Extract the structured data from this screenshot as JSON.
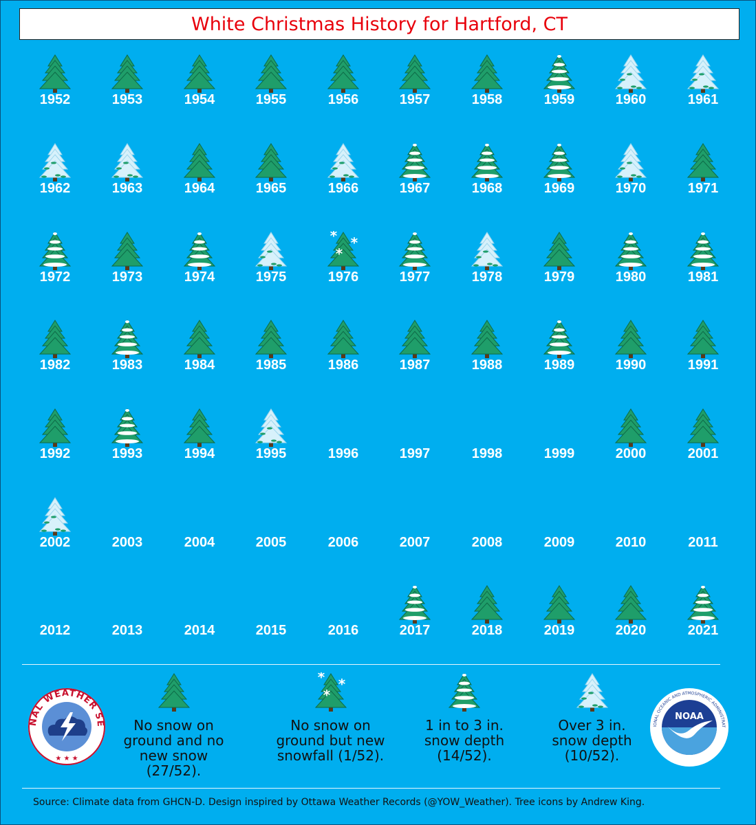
{
  "title": "White Christmas History for Hartford, CT",
  "colors": {
    "background": "#00aeef",
    "title": "#e8000b",
    "tree_green": "#1f9e6a",
    "tree_dark": "#0e6b47",
    "snow": "#ffffff"
  },
  "chart_data": {
    "type": "table",
    "categories_legend": {
      "none": "No snow on ground and no new snow (27/52).",
      "new": "No snow on ground but new snowfall (1/52).",
      "light": "1 in to 3 in. snow depth (14/52).",
      "heavy": "Over 3 in. snow depth (10/52)."
    },
    "years": [
      {
        "year": "1952",
        "cat": "none"
      },
      {
        "year": "1953",
        "cat": "none"
      },
      {
        "year": "1954",
        "cat": "none"
      },
      {
        "year": "1955",
        "cat": "none"
      },
      {
        "year": "1956",
        "cat": "none"
      },
      {
        "year": "1957",
        "cat": "none"
      },
      {
        "year": "1958",
        "cat": "none"
      },
      {
        "year": "1959",
        "cat": "light"
      },
      {
        "year": "1960",
        "cat": "heavy"
      },
      {
        "year": "1961",
        "cat": "heavy"
      },
      {
        "year": "1962",
        "cat": "heavy"
      },
      {
        "year": "1963",
        "cat": "heavy"
      },
      {
        "year": "1964",
        "cat": "none"
      },
      {
        "year": "1965",
        "cat": "none"
      },
      {
        "year": "1966",
        "cat": "heavy"
      },
      {
        "year": "1967",
        "cat": "light"
      },
      {
        "year": "1968",
        "cat": "light"
      },
      {
        "year": "1969",
        "cat": "light"
      },
      {
        "year": "1970",
        "cat": "heavy"
      },
      {
        "year": "1971",
        "cat": "none"
      },
      {
        "year": "1972",
        "cat": "light"
      },
      {
        "year": "1973",
        "cat": "none"
      },
      {
        "year": "1974",
        "cat": "light"
      },
      {
        "year": "1975",
        "cat": "heavy"
      },
      {
        "year": "1976",
        "cat": "new"
      },
      {
        "year": "1977",
        "cat": "light"
      },
      {
        "year": "1978",
        "cat": "heavy"
      },
      {
        "year": "1979",
        "cat": "none"
      },
      {
        "year": "1980",
        "cat": "light"
      },
      {
        "year": "1981",
        "cat": "light"
      },
      {
        "year": "1982",
        "cat": "none"
      },
      {
        "year": "1983",
        "cat": "light"
      },
      {
        "year": "1984",
        "cat": "none"
      },
      {
        "year": "1985",
        "cat": "none"
      },
      {
        "year": "1986",
        "cat": "none"
      },
      {
        "year": "1987",
        "cat": "none"
      },
      {
        "year": "1988",
        "cat": "none"
      },
      {
        "year": "1989",
        "cat": "light"
      },
      {
        "year": "1990",
        "cat": "none"
      },
      {
        "year": "1991",
        "cat": "none"
      },
      {
        "year": "1992",
        "cat": "none"
      },
      {
        "year": "1993",
        "cat": "light"
      },
      {
        "year": "1994",
        "cat": "none"
      },
      {
        "year": "1995",
        "cat": "heavy"
      },
      {
        "year": "1996",
        "cat": ""
      },
      {
        "year": "1997",
        "cat": ""
      },
      {
        "year": "1998",
        "cat": ""
      },
      {
        "year": "1999",
        "cat": ""
      },
      {
        "year": "2000",
        "cat": "none"
      },
      {
        "year": "2001",
        "cat": "none"
      },
      {
        "year": "2002",
        "cat": "heavy"
      },
      {
        "year": "2003",
        "cat": ""
      },
      {
        "year": "2004",
        "cat": ""
      },
      {
        "year": "2005",
        "cat": ""
      },
      {
        "year": "2006",
        "cat": ""
      },
      {
        "year": "2007",
        "cat": ""
      },
      {
        "year": "2008",
        "cat": ""
      },
      {
        "year": "2009",
        "cat": ""
      },
      {
        "year": "2010",
        "cat": ""
      },
      {
        "year": "2011",
        "cat": ""
      },
      {
        "year": "2012",
        "cat": ""
      },
      {
        "year": "2013",
        "cat": ""
      },
      {
        "year": "2014",
        "cat": ""
      },
      {
        "year": "2015",
        "cat": ""
      },
      {
        "year": "2016",
        "cat": ""
      },
      {
        "year": "2017",
        "cat": "light"
      },
      {
        "year": "2018",
        "cat": "none"
      },
      {
        "year": "2019",
        "cat": "none"
      },
      {
        "year": "2020",
        "cat": "none"
      },
      {
        "year": "2021",
        "cat": "light"
      }
    ]
  },
  "legend": {
    "none_label": "No snow on\nground and no\nnew snow (27/52).",
    "new_label": "No snow on\nground but new\nsnowfall (1/52).",
    "light_label": "1 in to 3 in.\nsnow depth\n(14/52).",
    "heavy_label": "Over 3 in.\nsnow depth\n(10/52)."
  },
  "logos": {
    "nws_text": "NATIONAL WEATHER SERVICE",
    "noaa_text": "NOAA",
    "noaa_ring_text": "NATIONAL OCEANIC AND ATMOSPHERIC ADMINISTRATION"
  },
  "source": "Source: Climate data from GHCN-D.   Design inspired by Ottawa Weather Records (@YOW_Weather). Tree icons by Andrew King."
}
